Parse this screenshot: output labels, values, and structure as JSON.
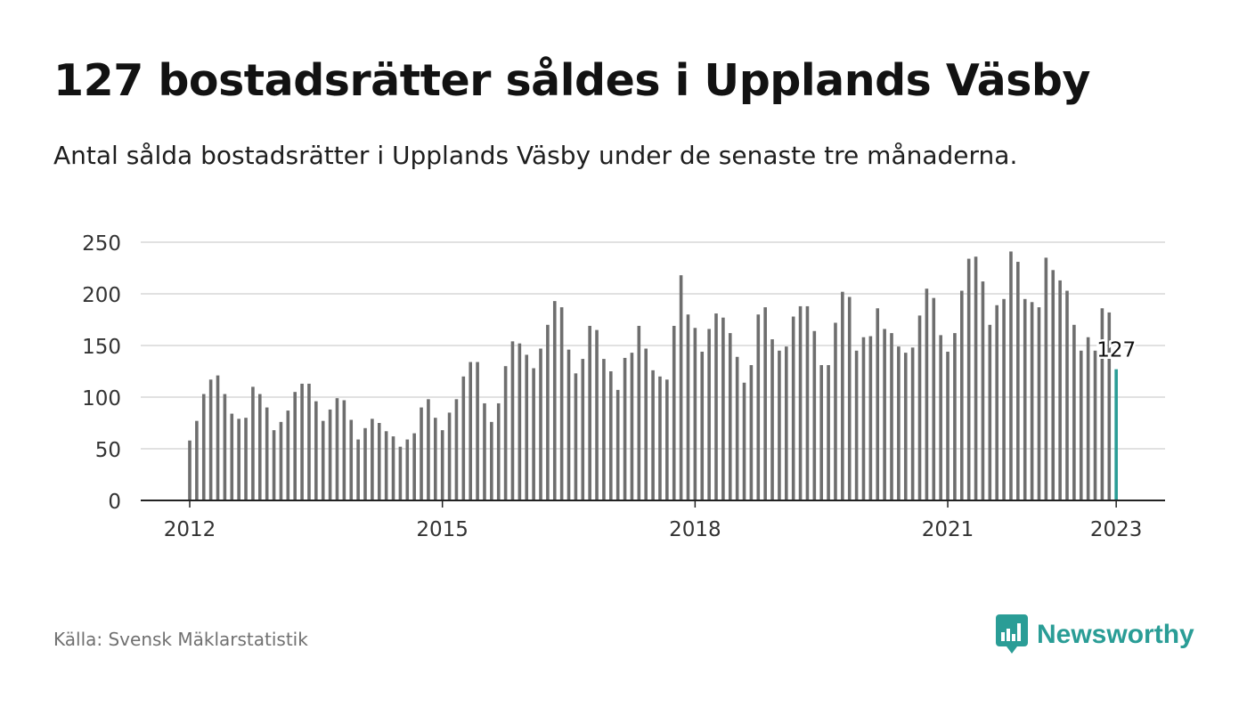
{
  "header": {
    "title": "127 bostadsrätter såldes i Upplands Väsby",
    "subtitle": "Antal sålda bostadsrätter i Upplands Väsby under de senaste tre månaderna."
  },
  "footer": {
    "source": "Källa: Svensk Mäklarstatistik",
    "brand": "Newsworthy",
    "brand_icon": "bar-chart-speech-bubble-icon"
  },
  "colors": {
    "bar": "#6e6e6e",
    "highlight": "#2a9d96",
    "grid": "#d7d7d7",
    "axis": "#222222",
    "text": "#121212"
  },
  "chart_data": {
    "type": "bar",
    "title": "127 bostadsrätter såldes i Upplands Väsby",
    "subtitle": "Antal sålda bostadsrätter i Upplands Väsby under de senaste tre månaderna.",
    "xlabel": "",
    "ylabel": "",
    "ylim": [
      0,
      250
    ],
    "yticks": [
      0,
      50,
      100,
      150,
      200,
      250
    ],
    "xticks": [
      "2012",
      "2015",
      "2018",
      "2021",
      "2023"
    ],
    "grid": true,
    "legend": "none",
    "categories": [
      "2012-01",
      "2012-02",
      "2012-03",
      "2012-04",
      "2012-05",
      "2012-06",
      "2012-07",
      "2012-08",
      "2012-09",
      "2012-10",
      "2012-11",
      "2012-12",
      "2013-01",
      "2013-02",
      "2013-03",
      "2013-04",
      "2013-05",
      "2013-06",
      "2013-07",
      "2013-08",
      "2013-09",
      "2013-10",
      "2013-11",
      "2013-12",
      "2014-01",
      "2014-02",
      "2014-03",
      "2014-04",
      "2014-05",
      "2014-06",
      "2014-07",
      "2014-08",
      "2014-09",
      "2014-10",
      "2014-11",
      "2014-12",
      "2015-01",
      "2015-02",
      "2015-03",
      "2015-04",
      "2015-05",
      "2015-06",
      "2015-07",
      "2015-08",
      "2015-09",
      "2015-10",
      "2015-11",
      "2015-12",
      "2016-01",
      "2016-02",
      "2016-03",
      "2016-04",
      "2016-05",
      "2016-06",
      "2016-07",
      "2016-08",
      "2016-09",
      "2016-10",
      "2016-11",
      "2016-12",
      "2017-01",
      "2017-02",
      "2017-03",
      "2017-04",
      "2017-05",
      "2017-06",
      "2017-07",
      "2017-08",
      "2017-09",
      "2017-10",
      "2017-11",
      "2017-12",
      "2018-01",
      "2018-02",
      "2018-03",
      "2018-04",
      "2018-05",
      "2018-06",
      "2018-07",
      "2018-08",
      "2018-09",
      "2018-10",
      "2018-11",
      "2018-12",
      "2019-01",
      "2019-02",
      "2019-03",
      "2019-04",
      "2019-05",
      "2019-06",
      "2019-07",
      "2019-08",
      "2019-09",
      "2019-10",
      "2019-11",
      "2019-12",
      "2020-01",
      "2020-02",
      "2020-03",
      "2020-04",
      "2020-05",
      "2020-06",
      "2020-07",
      "2020-08",
      "2020-09",
      "2020-10",
      "2020-11",
      "2020-12",
      "2021-01",
      "2021-02",
      "2021-03",
      "2021-04",
      "2021-05",
      "2021-06",
      "2021-07",
      "2021-08",
      "2021-09",
      "2021-10",
      "2021-11",
      "2021-12",
      "2022-01",
      "2022-02",
      "2022-03",
      "2022-04",
      "2022-05",
      "2022-06",
      "2022-07",
      "2022-08",
      "2022-09",
      "2022-10",
      "2022-11",
      "2022-12",
      "2023-01"
    ],
    "values": [
      58,
      77,
      103,
      117,
      121,
      103,
      84,
      79,
      80,
      110,
      103,
      90,
      68,
      76,
      87,
      105,
      113,
      113,
      96,
      77,
      88,
      99,
      97,
      78,
      59,
      70,
      79,
      75,
      67,
      62,
      52,
      59,
      65,
      90,
      98,
      80,
      68,
      85,
      98,
      120,
      134,
      134,
      94,
      76,
      94,
      130,
      154,
      152,
      141,
      128,
      147,
      170,
      193,
      187,
      146,
      123,
      137,
      169,
      165,
      137,
      125,
      107,
      138,
      143,
      169,
      147,
      126,
      120,
      117,
      169,
      218,
      180,
      167,
      144,
      166,
      181,
      177,
      162,
      139,
      114,
      131,
      180,
      187,
      156,
      145,
      149,
      178,
      188,
      188,
      164,
      131,
      131,
      172,
      202,
      197,
      145,
      158,
      159,
      186,
      166,
      162,
      149,
      143,
      148,
      179,
      205,
      196,
      160,
      144,
      162,
      203,
      234,
      236,
      212,
      170,
      189,
      195,
      241,
      231,
      195,
      192,
      187,
      235,
      223,
      213,
      203,
      170,
      145,
      158,
      145,
      186,
      182,
      127
    ],
    "highlight_index": 132,
    "highlight_label": "127"
  }
}
